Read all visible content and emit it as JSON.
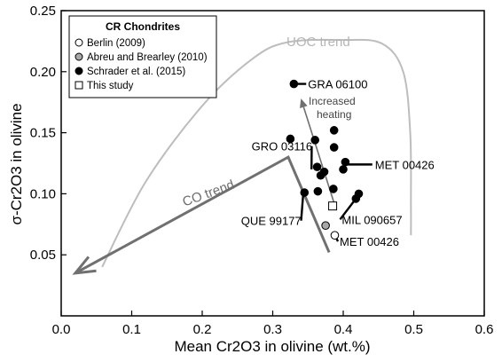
{
  "chart_data": {
    "type": "scatter",
    "title": "",
    "xlabel": "Mean Cr2O3 in olivine (wt.%)",
    "ylabel": "σ-Cr2O3 in olivine",
    "xlim": [
      0,
      0.6
    ],
    "ylim": [
      0,
      0.25
    ],
    "x_ticks": [
      "0.0",
      "0.1",
      "0.2",
      "0.3",
      "0.4",
      "0.5",
      "0.6"
    ],
    "y_ticks": [
      "0.05",
      "0.10",
      "0.15",
      "0.20",
      "0.25"
    ],
    "grid": false,
    "legend": {
      "title": "CR Chondrites",
      "placement": "top-left",
      "entries": [
        {
          "label": "Berlin (2009)",
          "marker": "open-circle"
        },
        {
          "label": "Abreu and Brearley (2010)",
          "marker": "gray-circle"
        },
        {
          "label": "Schrader et al. (2015)",
          "marker": "filled-circle"
        },
        {
          "label": "This study",
          "marker": "open-square"
        }
      ]
    },
    "series": [
      {
        "name": "Berlin (2009)",
        "marker": "open-circle",
        "points": [
          [
            0.388,
            0.066
          ]
        ]
      },
      {
        "name": "Abreu and Brearley (2010)",
        "marker": "gray-circle",
        "points": [
          [
            0.375,
            0.074
          ]
        ]
      },
      {
        "name": "Schrader et al. (2015)",
        "marker": "filled-circle",
        "points": [
          [
            0.33,
            0.19
          ],
          [
            0.325,
            0.145
          ],
          [
            0.387,
            0.152
          ],
          [
            0.36,
            0.144
          ],
          [
            0.387,
            0.138
          ],
          [
            0.363,
            0.122
          ],
          [
            0.373,
            0.118
          ],
          [
            0.368,
            0.115
          ],
          [
            0.345,
            0.101
          ],
          [
            0.364,
            0.102
          ],
          [
            0.386,
            0.104
          ],
          [
            0.4,
            0.12
          ],
          [
            0.403,
            0.126
          ],
          [
            0.422,
            0.1
          ],
          [
            0.418,
            0.096
          ]
        ]
      },
      {
        "name": "This study",
        "marker": "open-square",
        "points": [
          [
            0.385,
            0.09
          ]
        ]
      }
    ],
    "trend_lines": [
      {
        "name": "UOC trend",
        "color": "#bdbdbd",
        "points": [
          [
            0.058,
            0.04
          ],
          [
            0.12,
            0.11
          ],
          [
            0.2,
            0.172
          ],
          [
            0.27,
            0.21
          ],
          [
            0.32,
            0.224
          ],
          [
            0.4,
            0.226
          ],
          [
            0.455,
            0.223
          ],
          [
            0.485,
            0.2
          ],
          [
            0.495,
            0.15
          ],
          [
            0.496,
            0.09
          ],
          [
            0.496,
            0.066
          ]
        ]
      },
      {
        "name": "CO trend",
        "color": "#707070",
        "points": [
          [
            0.38,
            0.052
          ],
          [
            0.322,
            0.13
          ],
          [
            0.02,
            0.035
          ]
        ]
      }
    ],
    "arrow": {
      "label_lines": [
        "Increased",
        "heating"
      ],
      "from": [
        0.39,
        0.087
      ],
      "to": [
        0.34,
        0.178
      ],
      "color": "#707070"
    },
    "annotations": [
      {
        "text": "GRA 06100",
        "x": 0.35,
        "y": 0.19,
        "point": [
          0.33,
          0.19
        ]
      },
      {
        "text": "GRO 03116",
        "x": 0.27,
        "y": 0.139,
        "point": [
          0.355,
          0.12
        ]
      },
      {
        "text": "MET 00426",
        "x": 0.445,
        "y": 0.124,
        "point": [
          0.405,
          0.124
        ]
      },
      {
        "text": "QUE 99177",
        "x": 0.255,
        "y": 0.078,
        "point": [
          0.343,
          0.098
        ]
      },
      {
        "text": "MIL 090657",
        "x": 0.398,
        "y": 0.079,
        "point": [
          0.418,
          0.096
        ]
      },
      {
        "text": "MET 00426",
        "x": 0.395,
        "y": 0.061,
        "point": [
          0.388,
          0.066
        ]
      }
    ],
    "colors": {
      "axis": "#000000",
      "gray_marker": "#a8a8a8"
    }
  }
}
